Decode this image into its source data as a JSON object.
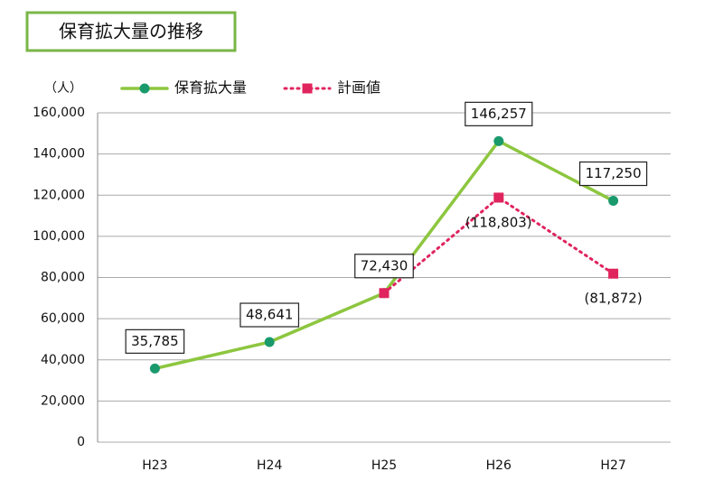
{
  "chart_data": {
    "type": "line",
    "title": "保育拡大量の推移",
    "y_label": "（人）",
    "categories": [
      "H23",
      "H24",
      "H25",
      "H26",
      "H27"
    ],
    "series": [
      {
        "name": "保育拡大量",
        "color": "#8dc63f",
        "marker_color": "#1a9a6c",
        "marker": "circle",
        "dash": false,
        "values": [
          35785,
          48641,
          72430,
          146257,
          117250
        ],
        "value_labels": [
          "35,785",
          "48,641",
          "72,430",
          "146,257",
          "117,250"
        ]
      },
      {
        "name": "計画値",
        "color": "#e0245e",
        "marker_color": "#e0245e",
        "marker": "square",
        "dash": true,
        "values": [
          null,
          null,
          72430,
          118803,
          81872
        ],
        "value_labels": [
          null,
          null,
          null,
          "(118,803)",
          "(81,872)"
        ]
      }
    ],
    "ylim": [
      0,
      160000
    ],
    "yticks": [
      0,
      {
        "value": 20000,
        "label": "20,000"
      },
      {
        "value": 40000,
        "label": "40,000"
      },
      {
        "value": 60000,
        "label": "60,000"
      },
      {
        "value": 80000,
        "label": "80,000"
      },
      {
        "value": 100000,
        "label": "100,000"
      },
      {
        "value": 120000,
        "label": "120,000"
      },
      {
        "value": 140000,
        "label": "140,000"
      },
      {
        "value": 160000,
        "label": "160,000"
      }
    ],
    "grid": true
  }
}
